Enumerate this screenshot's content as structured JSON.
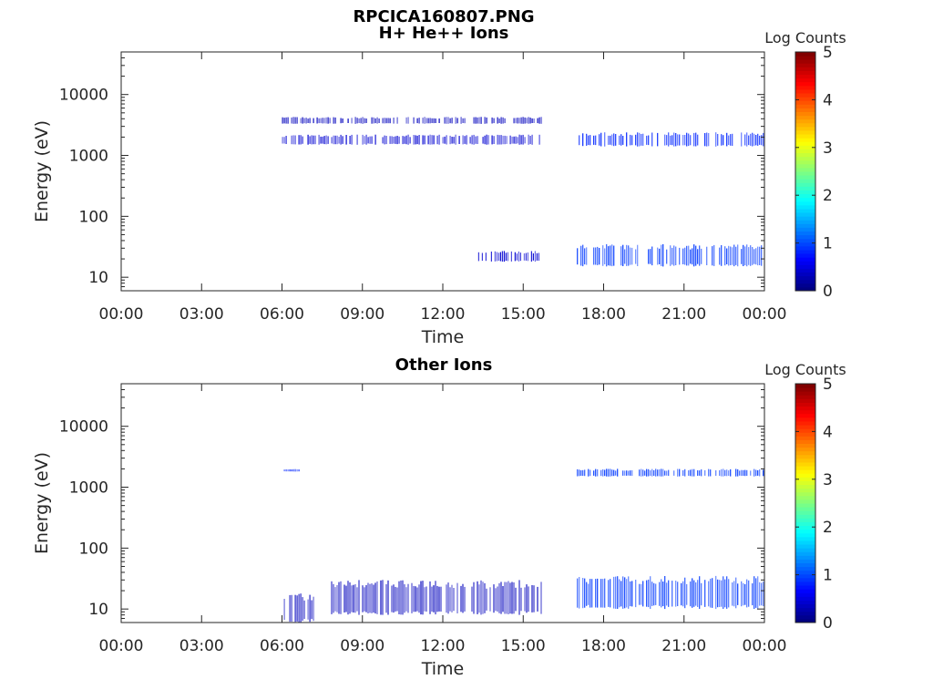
{
  "figure": {
    "title_line1": "RPCICA160807.PNG"
  },
  "chart_data": [
    {
      "type": "heatmap",
      "title": "H+ He++ Ions",
      "xlabel": "Time",
      "ylabel": "Energy (eV)",
      "yscale": "log",
      "ylim": [
        6,
        50000
      ],
      "xlim": [
        "00:00",
        "24:00"
      ],
      "x_ticks": [
        "00:00",
        "03:00",
        "06:00",
        "09:00",
        "12:00",
        "15:00",
        "18:00",
        "21:00",
        "00:00"
      ],
      "y_ticks": [
        "10",
        "100",
        "1000",
        "10000"
      ],
      "colorbar": {
        "label": "Log Counts",
        "ticks": [
          "0",
          "1",
          "2",
          "3",
          "4",
          "5"
        ],
        "range": [
          0,
          5
        ],
        "colormap": "jet"
      },
      "regions": [
        {
          "t_start": "06:00",
          "t_end": "15:40",
          "e_low": 1500,
          "e_high": 2200,
          "log_counts": 0.4
        },
        {
          "t_start": "06:00",
          "t_end": "15:40",
          "e_low": 3300,
          "e_high": 4300,
          "log_counts": 0.3
        },
        {
          "t_start": "13:15",
          "t_end": "15:40",
          "e_low": 18,
          "e_high": 27,
          "log_counts": 0.4
        },
        {
          "t_start": "17:00",
          "t_end": "24:00",
          "e_low": 1400,
          "e_high": 2400,
          "log_counts": 0.8
        },
        {
          "t_start": "17:00",
          "t_end": "24:00",
          "e_low": 15,
          "e_high": 35,
          "log_counts": 0.9
        }
      ]
    },
    {
      "type": "heatmap",
      "title": "Other Ions",
      "xlabel": "Time",
      "ylabel": "Energy (eV)",
      "yscale": "log",
      "ylim": [
        6,
        50000
      ],
      "xlim": [
        "00:00",
        "24:00"
      ],
      "x_ticks": [
        "00:00",
        "03:00",
        "06:00",
        "09:00",
        "12:00",
        "15:00",
        "18:00",
        "21:00",
        "00:00"
      ],
      "y_ticks": [
        "10",
        "100",
        "1000",
        "10000"
      ],
      "colorbar": {
        "label": "Log Counts",
        "ticks": [
          "0",
          "1",
          "2",
          "3",
          "4",
          "5"
        ],
        "range": [
          0,
          5
        ],
        "colormap": "jet"
      },
      "regions": [
        {
          "t_start": "06:00",
          "t_end": "07:10",
          "e_low": 6,
          "e_high": 18,
          "log_counts": 0.3
        },
        {
          "t_start": "07:50",
          "t_end": "15:40",
          "e_low": 8,
          "e_high": 30,
          "log_counts": 0.3
        },
        {
          "t_start": "06:00",
          "t_end": "06:40",
          "e_low": 1800,
          "e_high": 2000,
          "log_counts": 0.8
        },
        {
          "t_start": "17:00",
          "t_end": "24:00",
          "e_low": 1500,
          "e_high": 2000,
          "log_counts": 0.9
        },
        {
          "t_start": "17:00",
          "t_end": "24:00",
          "e_low": 10,
          "e_high": 35,
          "log_counts": 0.9
        }
      ]
    }
  ]
}
